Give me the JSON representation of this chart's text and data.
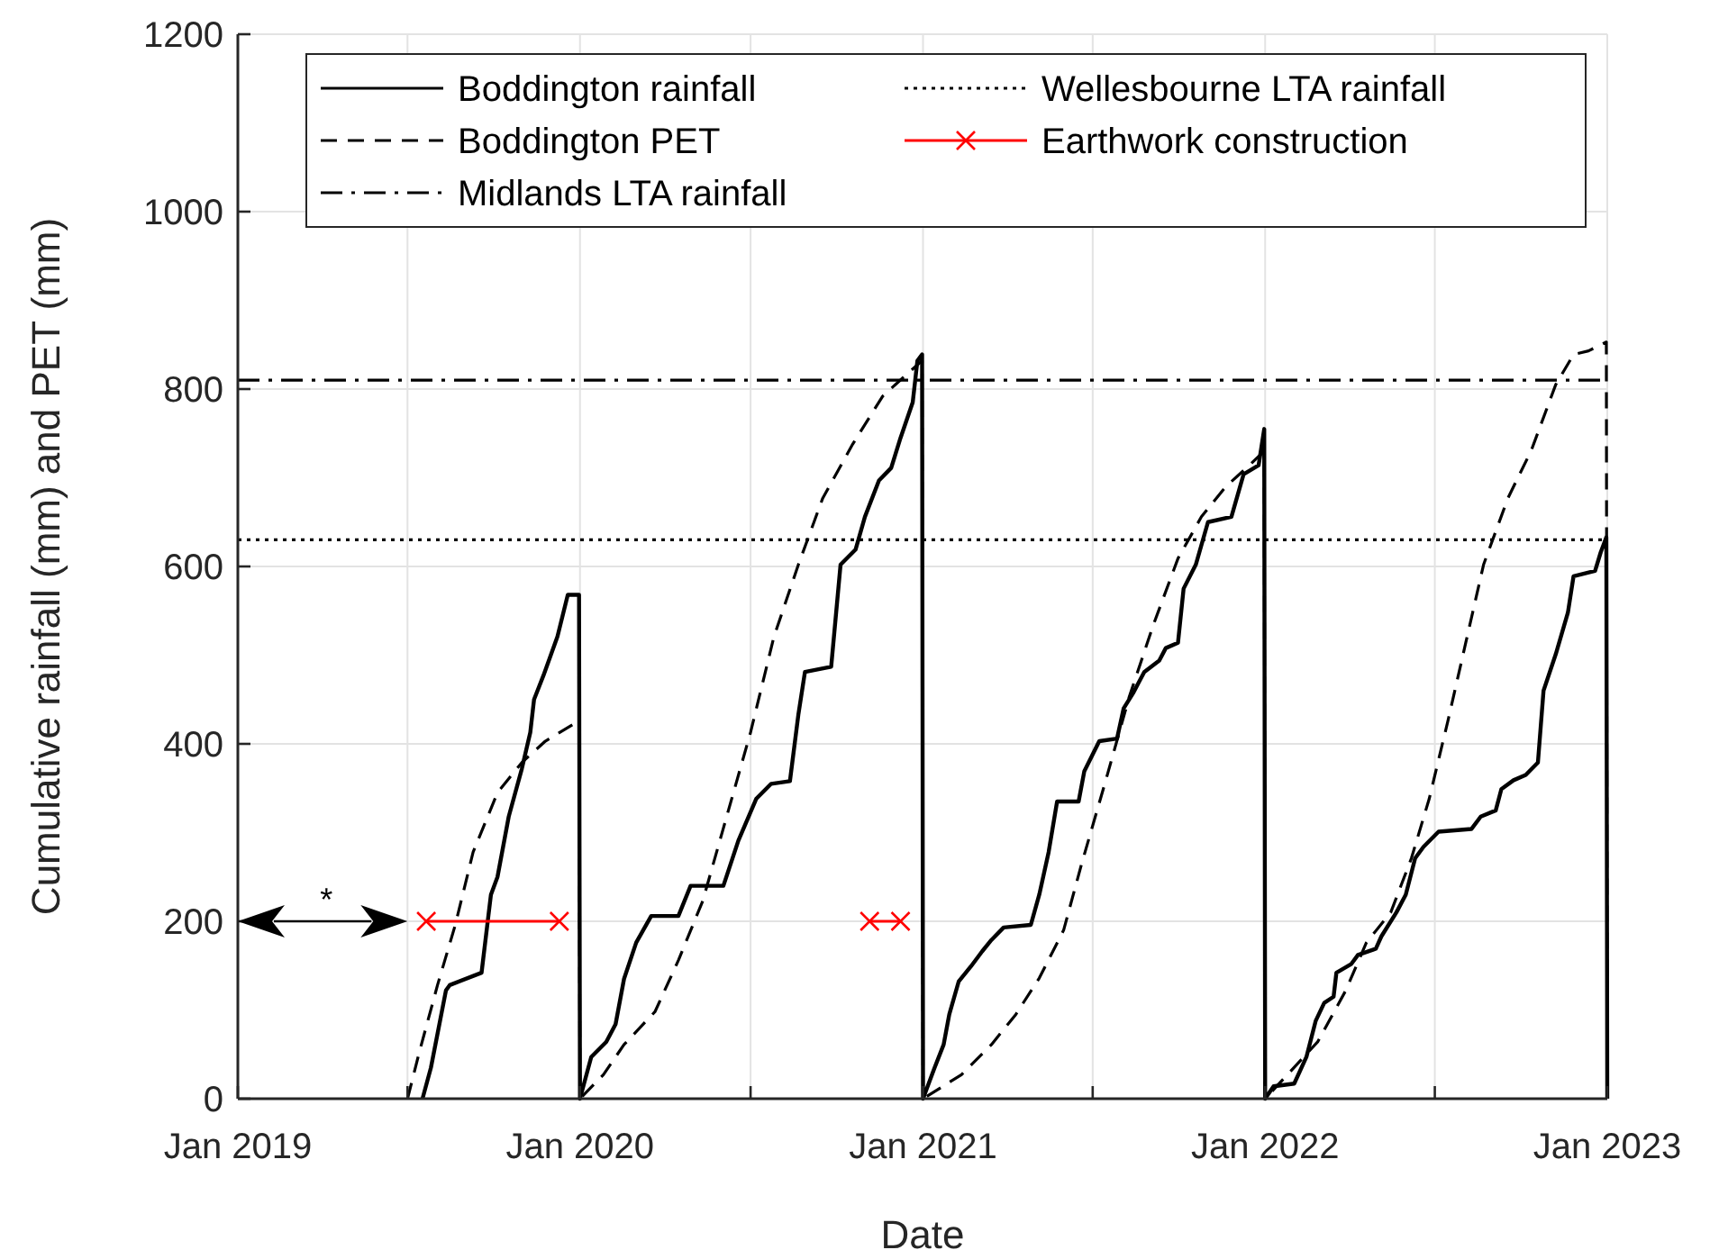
{
  "chart_data": {
    "type": "line",
    "xlabel": "Date",
    "ylabel": "Cumulative rainfall (mm) and PET (mm)",
    "xlim": [
      "2019-01-01",
      "2023-01-01"
    ],
    "xticks": [
      {
        "value": "2019-01-01",
        "label": "Jan 2019"
      },
      {
        "value": "2019-07-01",
        "label": null
      },
      {
        "value": "2020-01-01",
        "label": "Jan 2020"
      },
      {
        "value": "2020-07-01",
        "label": null
      },
      {
        "value": "2021-01-01",
        "label": "Jan 2021"
      },
      {
        "value": "2021-07-01",
        "label": null
      },
      {
        "value": "2022-01-01",
        "label": "Jan 2022"
      },
      {
        "value": "2022-07-01",
        "label": null
      },
      {
        "value": "2023-01-01",
        "label": "Jan 2023"
      }
    ],
    "ylim": [
      0,
      1200
    ],
    "yticks": [
      0,
      200,
      400,
      600,
      800,
      1000,
      1200
    ],
    "grid": true,
    "legend": "top",
    "annotations": [
      "*"
    ],
    "series": [
      {
        "name": "Boddington rainfall",
        "color": "#000000",
        "line_style": "solid",
        "marker": "none",
        "x": [
          "2019-07-17",
          "2019-07-26",
          "2019-08-11",
          "2019-08-15",
          "2019-09-18",
          "2019-09-28",
          "2019-10-05",
          "2019-10-17",
          "2019-10-31",
          "2019-11-09",
          "2019-11-13",
          "2019-11-23",
          "2019-12-08",
          "2019-12-19",
          "2019-12-31",
          "2020-01-01",
          "2020-01-13",
          "2020-01-29",
          "2020-02-08",
          "2020-02-17",
          "2020-03-01",
          "2020-03-17",
          "2020-04-15",
          "2020-04-28",
          "2020-06-02",
          "2020-06-18",
          "2020-07-07",
          "2020-07-23",
          "2020-08-12",
          "2020-08-21",
          "2020-08-28",
          "2020-09-25",
          "2020-10-05",
          "2020-10-21",
          "2020-10-31",
          "2020-11-15",
          "2020-11-28",
          "2020-12-08",
          "2020-12-21",
          "2020-12-26",
          "2020-12-31",
          "2021-01-01",
          "2021-01-13",
          "2021-01-23",
          "2021-01-29",
          "2021-02-08",
          "2021-02-21",
          "2021-03-05",
          "2021-03-15",
          "2021-03-28",
          "2021-04-26",
          "2021-05-05",
          "2021-05-15",
          "2021-05-24",
          "2021-06-16",
          "2021-06-22",
          "2021-07-08",
          "2021-07-27",
          "2021-08-03",
          "2021-08-13",
          "2021-08-25",
          "2021-09-10",
          "2021-09-17",
          "2021-09-30",
          "2021-10-06",
          "2021-10-19",
          "2021-11-01",
          "2021-11-26",
          "2021-12-09",
          "2021-12-25",
          "2021-12-31",
          "2022-01-01",
          "2022-01-10",
          "2022-02-01",
          "2022-02-14",
          "2022-02-24",
          "2022-03-05",
          "2022-03-15",
          "2022-03-18",
          "2022-04-03",
          "2022-04-10",
          "2022-04-29",
          "2022-05-05",
          "2022-05-21",
          "2022-05-31",
          "2022-06-10",
          "2022-06-19",
          "2022-07-05",
          "2022-08-09",
          "2022-08-19",
          "2022-09-04",
          "2022-09-10",
          "2022-09-23",
          "2022-10-06",
          "2022-10-19",
          "2022-10-25",
          "2022-11-07",
          "2022-11-20",
          "2022-11-26",
          "2022-12-19",
          "2022-12-25",
          "2022-12-31",
          "2023-01-01"
        ],
        "values": [
          0,
          35,
          122,
          128,
          142,
          230,
          250,
          318,
          372,
          413,
          450,
          477,
          521,
          568,
          568,
          0,
          47,
          64,
          84,
          135,
          176,
          206,
          206,
          240,
          240,
          291,
          338,
          355,
          358,
          433,
          481,
          487,
          602,
          619,
          656,
          697,
          711,
          745,
          785,
          832,
          839,
          0,
          34,
          61,
          95,
          132,
          149,
          166,
          179,
          193,
          196,
          230,
          278,
          335,
          335,
          369,
          403,
          406,
          440,
          457,
          481,
          494,
          508,
          514,
          575,
          602,
          650,
          656,
          704,
          714,
          755,
          0,
          14,
          17,
          47,
          88,
          108,
          115,
          142,
          152,
          162,
          169,
          183,
          210,
          230,
          271,
          284,
          301,
          304,
          318,
          325,
          349,
          359,
          365,
          379,
          460,
          501,
          548,
          589,
          595,
          616,
          633,
          0
        ]
      },
      {
        "name": "Boddington PET",
        "color": "#000000",
        "line_style": "dashed",
        "marker": "none",
        "x": [
          "2019-07-01",
          "2019-07-14",
          "2019-08-02",
          "2019-08-21",
          "2019-09-09",
          "2019-10-05",
          "2019-10-31",
          "2019-11-25",
          "2019-12-31",
          "2020-01-01",
          "2020-01-26",
          "2020-02-17",
          "2020-03-21",
          "2020-04-15",
          "2020-05-11",
          "2020-06-02",
          "2020-07-01",
          "2020-07-26",
          "2020-08-21",
          "2020-09-16",
          "2020-10-18",
          "2020-11-19",
          "2020-12-14",
          "2020-12-31",
          "2021-01-01",
          "2021-02-11",
          "2021-03-15",
          "2021-04-10",
          "2021-05-05",
          "2021-05-31",
          "2021-06-19",
          "2021-07-15",
          "2021-08-09",
          "2021-09-04",
          "2021-09-30",
          "2021-10-25",
          "2021-11-20",
          "2021-12-15",
          "2021-12-31",
          "2022-01-01",
          "2022-02-26",
          "2022-03-28",
          "2022-04-19",
          "2022-05-15",
          "2022-06-06",
          "2022-06-25",
          "2022-07-15",
          "2022-08-03",
          "2022-08-22",
          "2022-09-17",
          "2022-10-12",
          "2022-11-07",
          "2022-11-26",
          "2022-12-12",
          "2022-12-31",
          "2023-01-01"
        ],
        "values": [
          0,
          54,
          128,
          196,
          278,
          345,
          379,
          403,
          426,
          0,
          27,
          61,
          98,
          156,
          223,
          305,
          413,
          521,
          602,
          677,
          738,
          792,
          816,
          832,
          0,
          27,
          61,
          95,
          136,
          190,
          264,
          359,
          453,
          535,
          609,
          656,
          690,
          714,
          730,
          0,
          64,
          122,
          176,
          210,
          271,
          338,
          426,
          514,
          602,
          677,
          731,
          805,
          839,
          843,
          853,
          0
        ]
      },
      {
        "name": "Midlands LTA rainfall",
        "color": "#000000",
        "line_style": "dashdot",
        "marker": "none",
        "x": [
          "2019-01-01",
          "2023-01-01"
        ],
        "values": [
          810,
          810
        ]
      },
      {
        "name": "Wellesbourne LTA rainfall",
        "color": "#000000",
        "line_style": "dotted",
        "marker": "none",
        "x": [
          "2019-01-01",
          "2023-01-01"
        ],
        "values": [
          630,
          630
        ]
      },
      {
        "name": "Earthwork construction",
        "color": "#ff0000",
        "line_style": "solid",
        "marker": "cross",
        "x": [
          "2019-07-21",
          "2019-12-10",
          "2020-06-01",
          "2020-11-05",
          "2020-12-08"
        ],
        "values": [
          200,
          200,
          null,
          200,
          200
        ]
      }
    ]
  }
}
